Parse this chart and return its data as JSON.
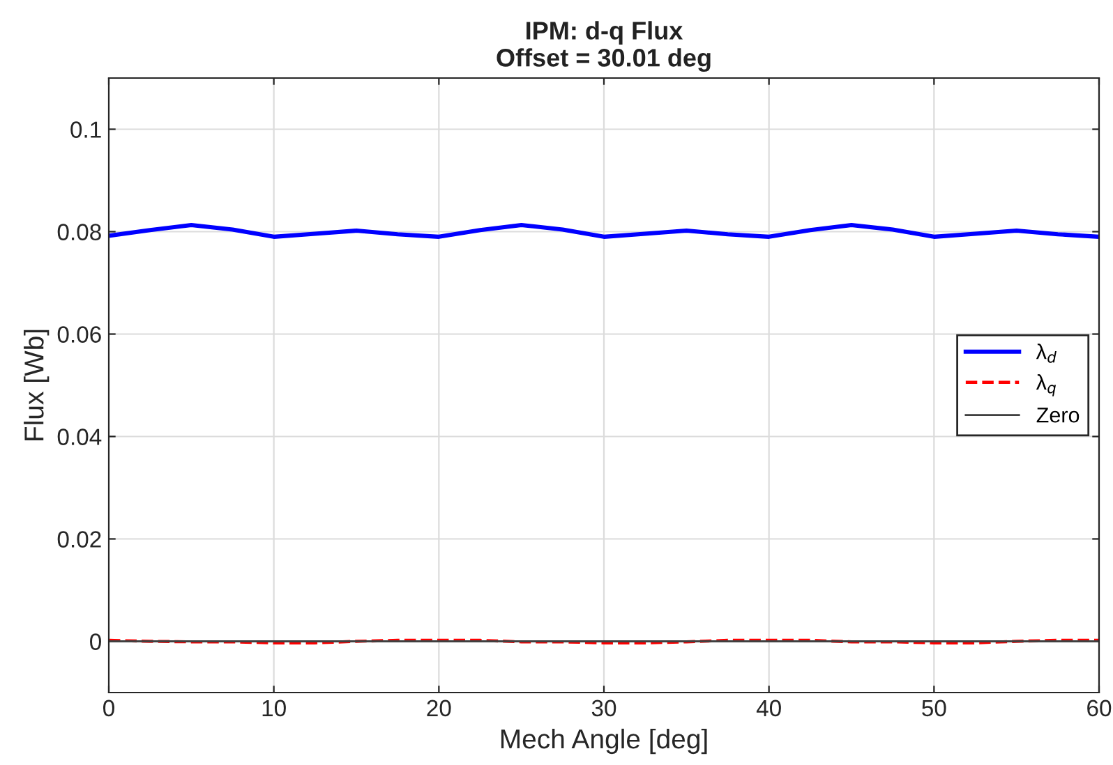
{
  "chart_data": {
    "type": "line",
    "title": "IPM: d-q Flux\nOffset = 30.01 deg",
    "xlabel": "Mech Angle [deg]",
    "ylabel": "Flux [Wb]",
    "x": [
      0,
      2.5,
      5,
      7.5,
      10,
      12.5,
      15,
      17.5,
      20,
      22.5,
      25,
      27.5,
      30,
      32.5,
      35,
      37.5,
      40,
      42.5,
      45,
      47.5,
      50,
      52.5,
      55,
      57.5,
      60
    ],
    "series": [
      {
        "name": "λ$_{d}$",
        "color": "#0000ff",
        "line_style": "solid",
        "values": [
          0.0792,
          0.0803,
          0.0813,
          0.0804,
          0.079,
          0.0796,
          0.0802,
          0.0795,
          0.079,
          0.0803,
          0.0813,
          0.0804,
          0.079,
          0.0796,
          0.0802,
          0.0795,
          0.079,
          0.0803,
          0.0813,
          0.0804,
          0.079,
          0.0796,
          0.0802,
          0.0795,
          0.079
        ]
      },
      {
        "name": "λ$_{q}$",
        "color": "#ff0000",
        "line_style": "dashed",
        "values": [
          0.0002,
          0.0,
          -0.0001,
          -0.0001,
          -0.0003,
          -0.0003,
          0.0,
          0.0002,
          0.0002,
          0.0002,
          -0.0001,
          -0.0001,
          -0.0003,
          -0.0003,
          -0.0001,
          0.0002,
          0.0002,
          0.0002,
          -0.0001,
          -0.0001,
          -0.0003,
          -0.0003,
          0.0,
          0.0002,
          0.0002
        ]
      },
      {
        "name": "Zero",
        "color": "#404040",
        "line_style": "solid",
        "values": [
          0,
          0,
          0,
          0,
          0,
          0,
          0,
          0,
          0,
          0,
          0,
          0,
          0,
          0,
          0,
          0,
          0,
          0,
          0,
          0,
          0,
          0,
          0,
          0,
          0
        ]
      }
    ],
    "xlim": [
      0,
      60
    ],
    "xticks": [
      0,
      10,
      20,
      30,
      40,
      50,
      60
    ],
    "ylim": [
      -0.01,
      0.11
    ],
    "yticks": [
      0,
      0.02,
      0.04,
      0.06,
      0.08,
      0.1
    ],
    "grid": true,
    "legend": "right",
    "marker": "none"
  }
}
